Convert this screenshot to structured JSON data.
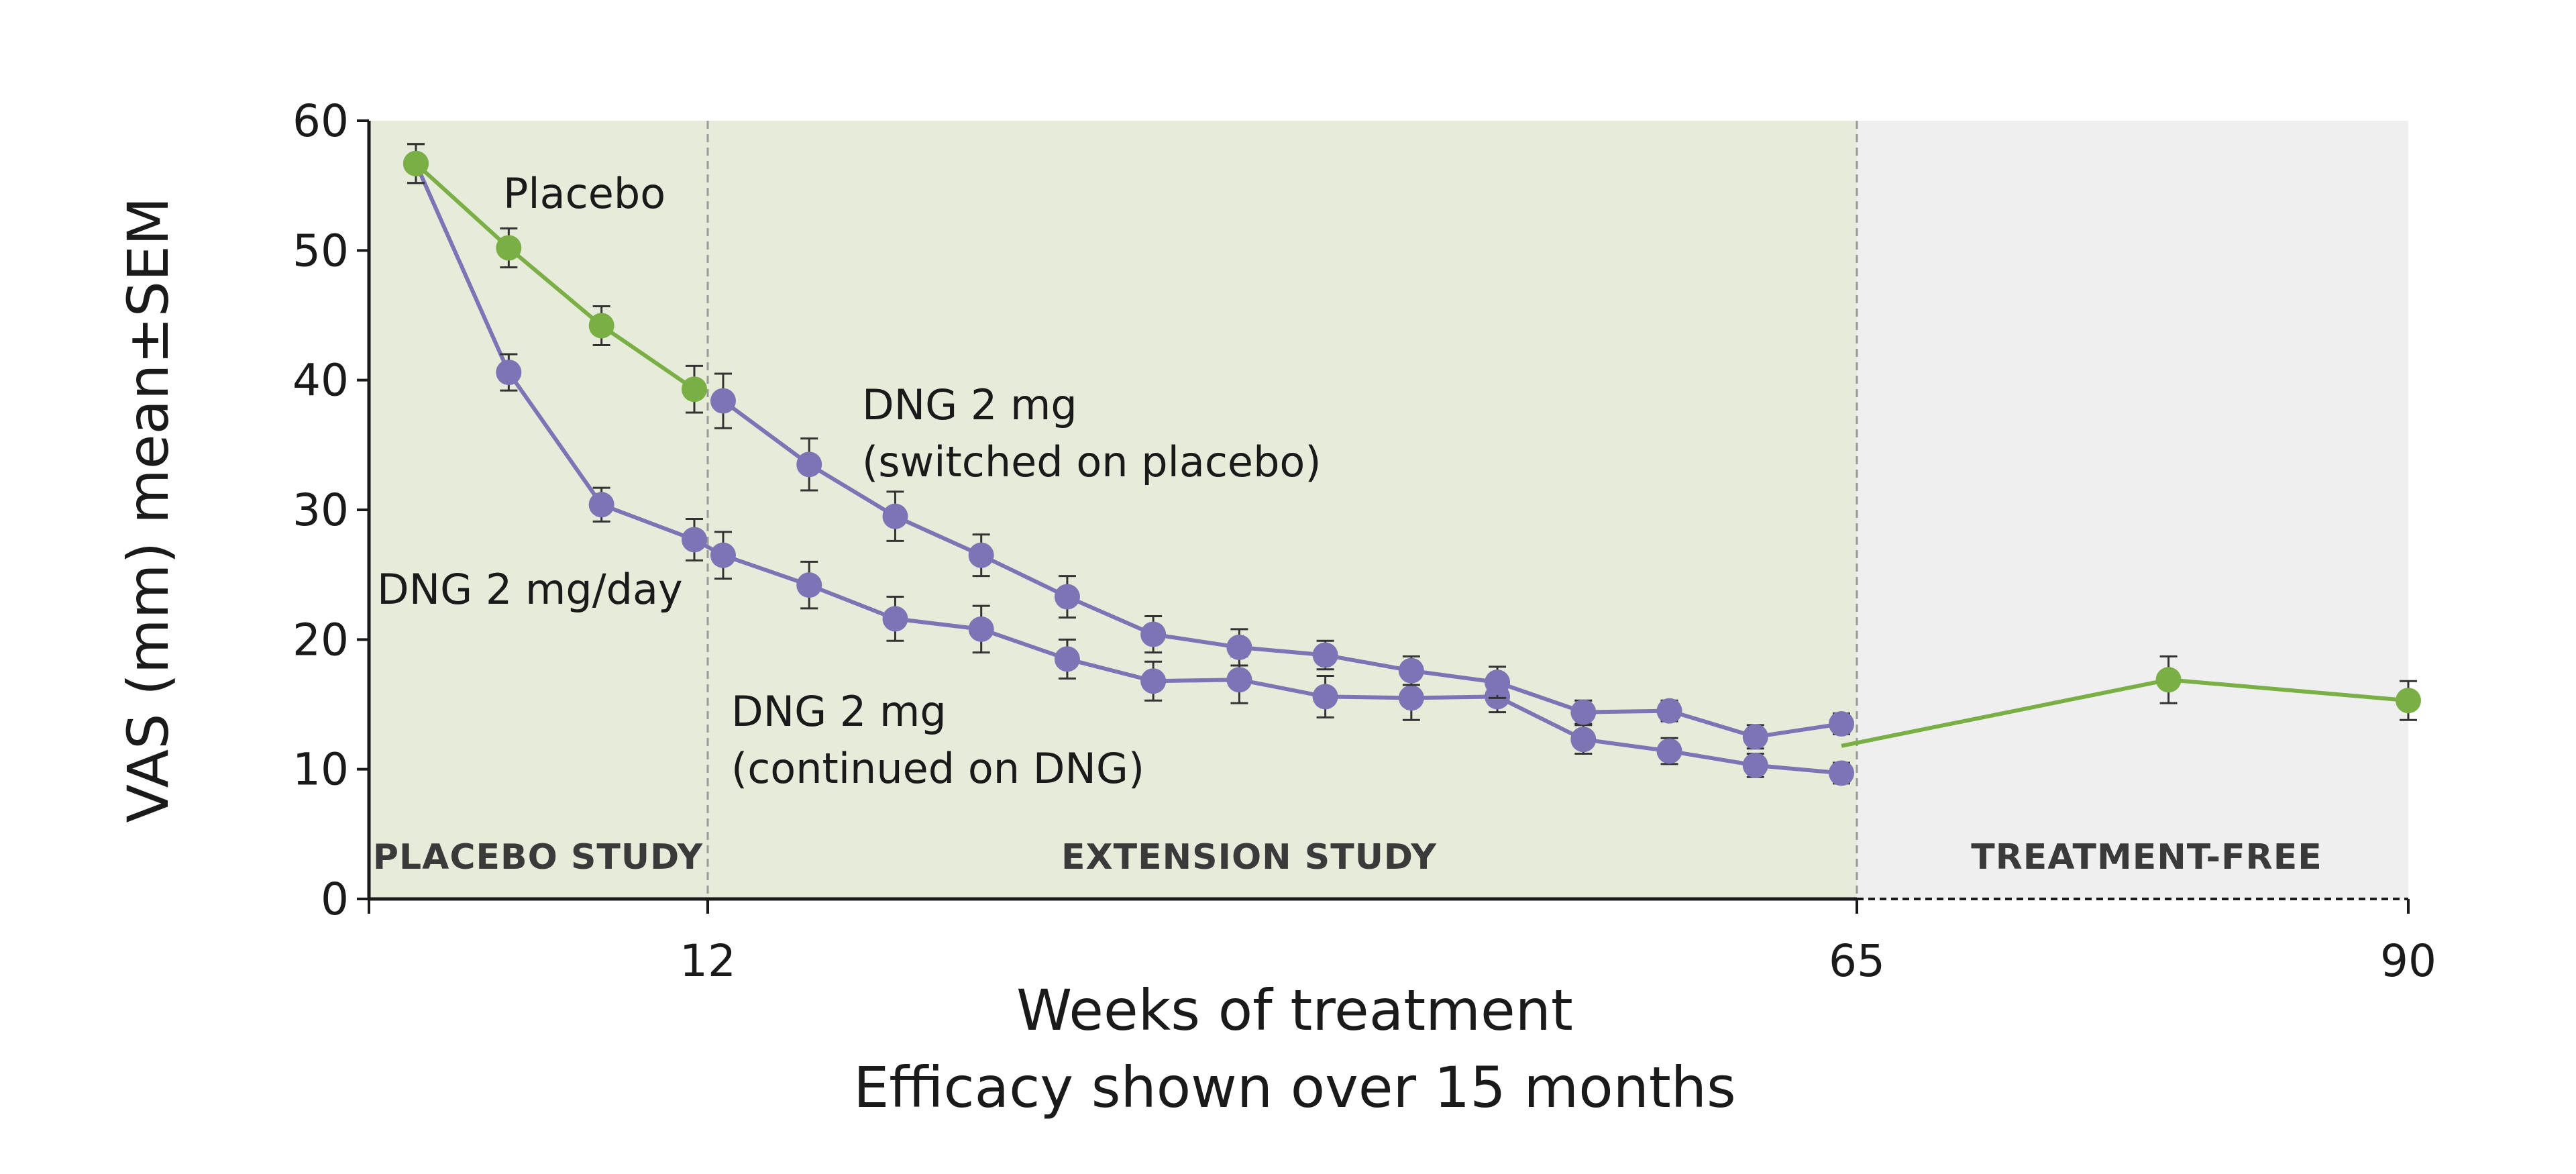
{
  "chart_data": {
    "type": "line",
    "title": "",
    "xlabel": "Weeks of treatment",
    "subtitle": "Efficacy shown over 15 months",
    "ylabel": "VAS (mm) mean±SEM",
    "ylim": [
      0,
      60
    ],
    "y_ticks": [
      0,
      10,
      20,
      30,
      40,
      50,
      60
    ],
    "x_tick_labels": [
      "12",
      "65",
      "90"
    ],
    "regions": [
      {
        "label": "PLACEBO STUDY",
        "color": "#e7ebda"
      },
      {
        "label": "EXTENSION STUDY",
        "color": "#e7ebda"
      },
      {
        "label": "TREATMENT-FREE",
        "color": "#efefef"
      }
    ],
    "colors": {
      "purple": "#7b75b5",
      "green": "#7aaf45"
    },
    "annotations": [
      {
        "text": "Placebo"
      },
      {
        "text": "DNG 2 mg/day"
      },
      {
        "text": "DNG 2 mg",
        "text2": "(switched on placebo)"
      },
      {
        "text": "DNG 2 mg",
        "text2": "(continued on DNG)"
      }
    ],
    "series": [
      {
        "name": "DNG 2 mg/day (continued on DNG)",
        "color": "#7b75b5",
        "x": [
          0,
          4,
          8,
          12,
          15,
          19,
          23,
          27,
          31,
          35,
          39,
          43,
          47,
          51,
          55,
          59,
          63,
          67
        ],
        "y": [
          56.7,
          40.6,
          30.4,
          27.7,
          26.5,
          24.2,
          21.6,
          20.8,
          18.5,
          16.8,
          16.9,
          15.6,
          15.5,
          15.6,
          12.3,
          11.4,
          10.3,
          9.7
        ],
        "sem": [
          1.5,
          1.4,
          1.3,
          1.6,
          1.8,
          1.8,
          1.7,
          1.8,
          1.5,
          1.5,
          1.8,
          1.6,
          1.7,
          1.2,
          1.1,
          1.0,
          0.9,
          0.8
        ]
      },
      {
        "name": "DNG 2 mg (switched on placebo)",
        "color": "#7b75b5",
        "x": [
          15,
          19,
          23,
          27,
          31,
          35,
          39,
          43,
          47,
          51,
          55,
          59,
          63,
          67
        ],
        "y": [
          38.4,
          33.5,
          29.5,
          26.5,
          23.3,
          20.4,
          19.4,
          18.8,
          17.6,
          16.7,
          14.4,
          14.5,
          12.5,
          13.5
        ],
        "sem": [
          2.1,
          2.0,
          1.9,
          1.6,
          1.6,
          1.4,
          1.4,
          1.1,
          1.1,
          1.2,
          0.9,
          0.8,
          0.9,
          0.8
        ]
      },
      {
        "name": "Placebo",
        "color": "#7aaf45",
        "x": [
          0,
          4,
          8,
          12
        ],
        "y": [
          56.7,
          50.2,
          44.2,
          39.3
        ],
        "sem": [
          1.5,
          1.5,
          1.5,
          1.8
        ]
      },
      {
        "name": "Treatment-free",
        "color": "#7aaf45",
        "x": [
          67,
          80,
          90
        ],
        "y": [
          11.8,
          16.9,
          15.3
        ],
        "sem": [
          0,
          1.8,
          1.5
        ]
      }
    ]
  }
}
